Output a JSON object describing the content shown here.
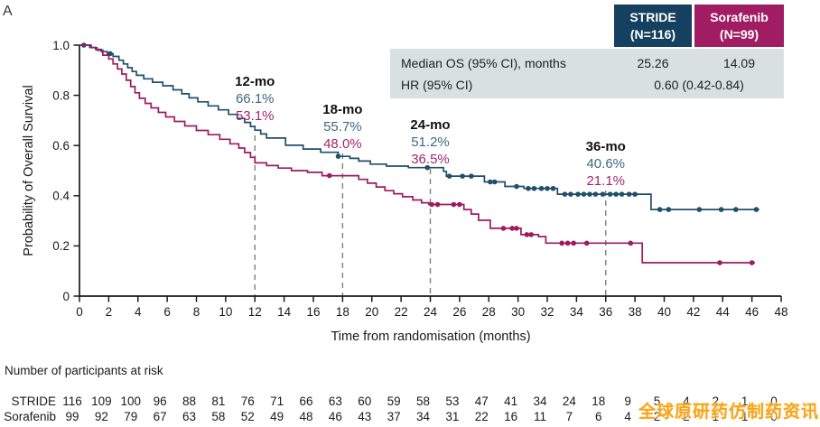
{
  "panel_label": "A",
  "watermark": {
    "text": "全球原研药仿制药资讯",
    "color": "#F7A41E"
  },
  "summary_table": {
    "body_bg": "#D8E0E0",
    "header": [
      {
        "name": "STRIDE",
        "n": "(N=116)",
        "bg": "#15405F"
      },
      {
        "name": "Sorafenib",
        "n": "(N=99)",
        "bg": "#A11D63"
      }
    ],
    "rows": [
      {
        "label": "Median OS (95% CI), months",
        "values": [
          "25.26",
          "14.09"
        ]
      },
      {
        "label": "HR (95% CI)",
        "values": [
          "0.60 (0.42-0.84)"
        ],
        "span": true
      }
    ]
  },
  "chart_data": {
    "type": "line",
    "subtype": "kaplan-meier-step",
    "title": "",
    "xlabel": "Time from randomisation (months)",
    "ylabel": "Probability of Overall Survival",
    "xlim": [
      0,
      48
    ],
    "ylim": [
      0,
      1.0
    ],
    "xticks": [
      0,
      2,
      4,
      6,
      8,
      10,
      12,
      14,
      16,
      18,
      20,
      22,
      24,
      26,
      28,
      30,
      32,
      34,
      36,
      38,
      40,
      42,
      44,
      46,
      48
    ],
    "yticks": [
      {
        "v": 0,
        "label": "0"
      },
      {
        "v": 0.2,
        "label": "0.2"
      },
      {
        "v": 0.4,
        "label": "0.4"
      },
      {
        "v": 0.6,
        "label": "0.6"
      },
      {
        "v": 0.8,
        "label": "0.8"
      },
      {
        "v": 1.0,
        "label": "1.0"
      }
    ],
    "grid": false,
    "axis_color": "#1A1A1A",
    "dash_color": "#7F7F7F",
    "annotation_colors": {
      "stride": "#40687F",
      "sorafenib": "#A3276C",
      "label": "#111111"
    },
    "annotations": [
      {
        "time": 12,
        "label": "12-mo",
        "stride": "66.1%",
        "sorafenib": "53.1%",
        "baseline": 95
      },
      {
        "time": 18,
        "label": "18-mo",
        "stride": "55.7%",
        "sorafenib": "48.0%",
        "baseline": 126
      },
      {
        "time": 24,
        "label": "24-mo",
        "stride": "51.2%",
        "sorafenib": "36.5%",
        "baseline": 143
      },
      {
        "time": 36,
        "label": "36-mo",
        "stride": "40.6%",
        "sorafenib": "21.1%",
        "baseline": 167
      }
    ],
    "series": [
      {
        "name": "STRIDE",
        "color": "#1F4F6B",
        "end_t": 46.5,
        "steps": [
          [
            0,
            1.0
          ],
          [
            0.7,
            0.991
          ],
          [
            1.1,
            0.983
          ],
          [
            1.5,
            0.974
          ],
          [
            1.9,
            0.966
          ],
          [
            2.3,
            0.955
          ],
          [
            2.7,
            0.94
          ],
          [
            3.0,
            0.925
          ],
          [
            3.3,
            0.91
          ],
          [
            3.6,
            0.895
          ],
          [
            3.9,
            0.88
          ],
          [
            4.4,
            0.866
          ],
          [
            5.0,
            0.852
          ],
          [
            5.7,
            0.838
          ],
          [
            6.4,
            0.822
          ],
          [
            7.0,
            0.806
          ],
          [
            7.5,
            0.79
          ],
          [
            8.1,
            0.774
          ],
          [
            8.8,
            0.758
          ],
          [
            9.5,
            0.742
          ],
          [
            10.2,
            0.724
          ],
          [
            10.8,
            0.708
          ],
          [
            11.3,
            0.692
          ],
          [
            11.7,
            0.676
          ],
          [
            12.0,
            0.661
          ],
          [
            12.4,
            0.646
          ],
          [
            12.8,
            0.63
          ],
          [
            14.1,
            0.601
          ],
          [
            15.3,
            0.586
          ],
          [
            16.5,
            0.573
          ],
          [
            17.7,
            0.557
          ],
          [
            18.5,
            0.549
          ],
          [
            19.1,
            0.538
          ],
          [
            19.9,
            0.526
          ],
          [
            21.0,
            0.518
          ],
          [
            22.5,
            0.512
          ],
          [
            24.9,
            0.497
          ],
          [
            25.1,
            0.478
          ],
          [
            27.7,
            0.455
          ],
          [
            29.1,
            0.437
          ],
          [
            30.4,
            0.429
          ],
          [
            32.7,
            0.406
          ],
          [
            39.1,
            0.345
          ]
        ],
        "censors": [
          [
            0.3,
            1.0
          ],
          [
            2.1,
            0.966
          ],
          [
            17.7,
            0.557
          ],
          [
            23.8,
            0.512
          ],
          [
            25.3,
            0.478
          ],
          [
            26.2,
            0.478
          ],
          [
            26.8,
            0.478
          ],
          [
            28.1,
            0.455
          ],
          [
            28.4,
            0.455
          ],
          [
            29.9,
            0.437
          ],
          [
            30.7,
            0.429
          ],
          [
            31.1,
            0.429
          ],
          [
            31.6,
            0.429
          ],
          [
            32.0,
            0.429
          ],
          [
            32.4,
            0.429
          ],
          [
            33.2,
            0.406
          ],
          [
            33.6,
            0.406
          ],
          [
            34.1,
            0.406
          ],
          [
            34.5,
            0.406
          ],
          [
            34.9,
            0.406
          ],
          [
            35.3,
            0.406
          ],
          [
            35.8,
            0.406
          ],
          [
            36.3,
            0.406
          ],
          [
            36.7,
            0.406
          ],
          [
            37.1,
            0.406
          ],
          [
            37.6,
            0.406
          ],
          [
            38.0,
            0.406
          ],
          [
            39.7,
            0.345
          ],
          [
            40.3,
            0.345
          ],
          [
            42.4,
            0.345
          ],
          [
            43.9,
            0.345
          ],
          [
            44.9,
            0.345
          ],
          [
            46.3,
            0.345
          ]
        ]
      },
      {
        "name": "Sorafenib",
        "color": "#9C1B62",
        "end_t": 46.2,
        "steps": [
          [
            0,
            1.0
          ],
          [
            0.8,
            0.99
          ],
          [
            1.2,
            0.98
          ],
          [
            1.6,
            0.96
          ],
          [
            2.0,
            0.945
          ],
          [
            2.3,
            0.925
          ],
          [
            2.6,
            0.905
          ],
          [
            2.9,
            0.885
          ],
          [
            3.2,
            0.86
          ],
          [
            3.5,
            0.835
          ],
          [
            3.8,
            0.81
          ],
          [
            4.1,
            0.788
          ],
          [
            4.5,
            0.768
          ],
          [
            4.9,
            0.75
          ],
          [
            5.4,
            0.732
          ],
          [
            5.9,
            0.714
          ],
          [
            6.5,
            0.696
          ],
          [
            7.2,
            0.678
          ],
          [
            8.0,
            0.66
          ],
          [
            8.8,
            0.643
          ],
          [
            9.6,
            0.625
          ],
          [
            10.3,
            0.607
          ],
          [
            10.9,
            0.59
          ],
          [
            11.3,
            0.572
          ],
          [
            11.7,
            0.553
          ],
          [
            12.0,
            0.531
          ],
          [
            12.8,
            0.52
          ],
          [
            13.6,
            0.51
          ],
          [
            14.5,
            0.5
          ],
          [
            15.6,
            0.493
          ],
          [
            16.6,
            0.48
          ],
          [
            19.1,
            0.465
          ],
          [
            19.7,
            0.45
          ],
          [
            20.3,
            0.435
          ],
          [
            20.9,
            0.42
          ],
          [
            21.5,
            0.408
          ],
          [
            22.1,
            0.396
          ],
          [
            22.8,
            0.383
          ],
          [
            23.4,
            0.372
          ],
          [
            23.9,
            0.365
          ],
          [
            26.3,
            0.345
          ],
          [
            26.8,
            0.327
          ],
          [
            27.3,
            0.302
          ],
          [
            28.1,
            0.27
          ],
          [
            30.2,
            0.245
          ],
          [
            31.4,
            0.237
          ],
          [
            31.9,
            0.211
          ],
          [
            38.5,
            0.133
          ]
        ],
        "censors": [
          [
            17.1,
            0.48
          ],
          [
            24.1,
            0.365
          ],
          [
            24.5,
            0.365
          ],
          [
            25.6,
            0.365
          ],
          [
            26.0,
            0.365
          ],
          [
            29.0,
            0.27
          ],
          [
            29.6,
            0.27
          ],
          [
            29.9,
            0.27
          ],
          [
            30.6,
            0.245
          ],
          [
            30.9,
            0.245
          ],
          [
            33.0,
            0.211
          ],
          [
            33.4,
            0.211
          ],
          [
            33.8,
            0.211
          ],
          [
            34.7,
            0.211
          ],
          [
            37.7,
            0.211
          ],
          [
            43.8,
            0.133
          ],
          [
            46.0,
            0.133
          ]
        ]
      }
    ]
  },
  "risk_table": {
    "title": "Number of participants at risk",
    "rows": [
      {
        "label": "STRIDE",
        "values": [
          116,
          109,
          100,
          96,
          88,
          81,
          76,
          71,
          66,
          63,
          60,
          59,
          58,
          53,
          47,
          41,
          34,
          24,
          18,
          9,
          5,
          4,
          2,
          1,
          0
        ]
      },
      {
        "label": "Sorafenib",
        "values": [
          99,
          92,
          79,
          67,
          63,
          58,
          52,
          49,
          48,
          46,
          43,
          37,
          34,
          31,
          22,
          16,
          11,
          7,
          6,
          4,
          2,
          2,
          1,
          1,
          0
        ]
      }
    ]
  }
}
